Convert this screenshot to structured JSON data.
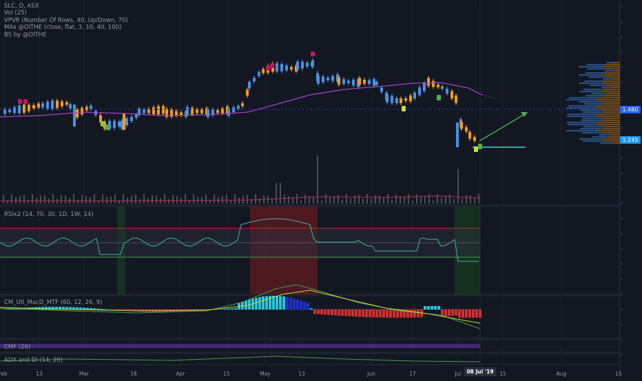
{
  "legend": {
    "symbol": "SLC, D, ASX",
    "vol": "Vol (25)",
    "vpvr": "VPVR (Number Of Rows, 40, Up/Down, 70)",
    "mas": "MAs @OITHE (close, flat, 3, 10, 40, 100)",
    "bs": "BS by @OITHE"
  },
  "indicators": {
    "rsi": "RSIx2 (14, 70, 30, 1D, 1W, 14)",
    "macd": "CM_Ult_MacD_MTF (60, 12, 26, 9)",
    "cmf": "CMF (20)",
    "adx": "ADX and DI (14, 20)"
  },
  "price_badges": {
    "upper": "1.480",
    "lower": "1.245",
    "upper_color": "#2962ff",
    "lower_color": "#2196f3"
  },
  "x_axis": {
    "ticks": [
      "Feb",
      "13",
      "Mar",
      "18",
      "Apr",
      "15",
      "May",
      "13",
      "Jun",
      "17",
      "Jul",
      "15",
      "Aug",
      "15"
    ],
    "current_date": "08 Jul '19"
  },
  "colors": {
    "background": "#131722",
    "up_candle": "#4a90e2",
    "down_candle": "#f39c12",
    "ma_line": "#a545c8",
    "rsi_line": "#3fb5a6",
    "macd_up": "#26c6da",
    "macd_down": "#d32f2f",
    "macd_neg": "#1e2fcf",
    "arrow": "#4caf50",
    "support_line": "#4dd0e1"
  },
  "chart_data": {
    "type": "candlestick",
    "symbol": "SLC",
    "interval": "D",
    "exchange": "ASX",
    "ylim": [
      1.18,
      1.78
    ],
    "current_price_marks": [
      1.48,
      1.245
    ],
    "series": [
      {
        "name": "MA",
        "values": []
      }
    ]
  }
}
